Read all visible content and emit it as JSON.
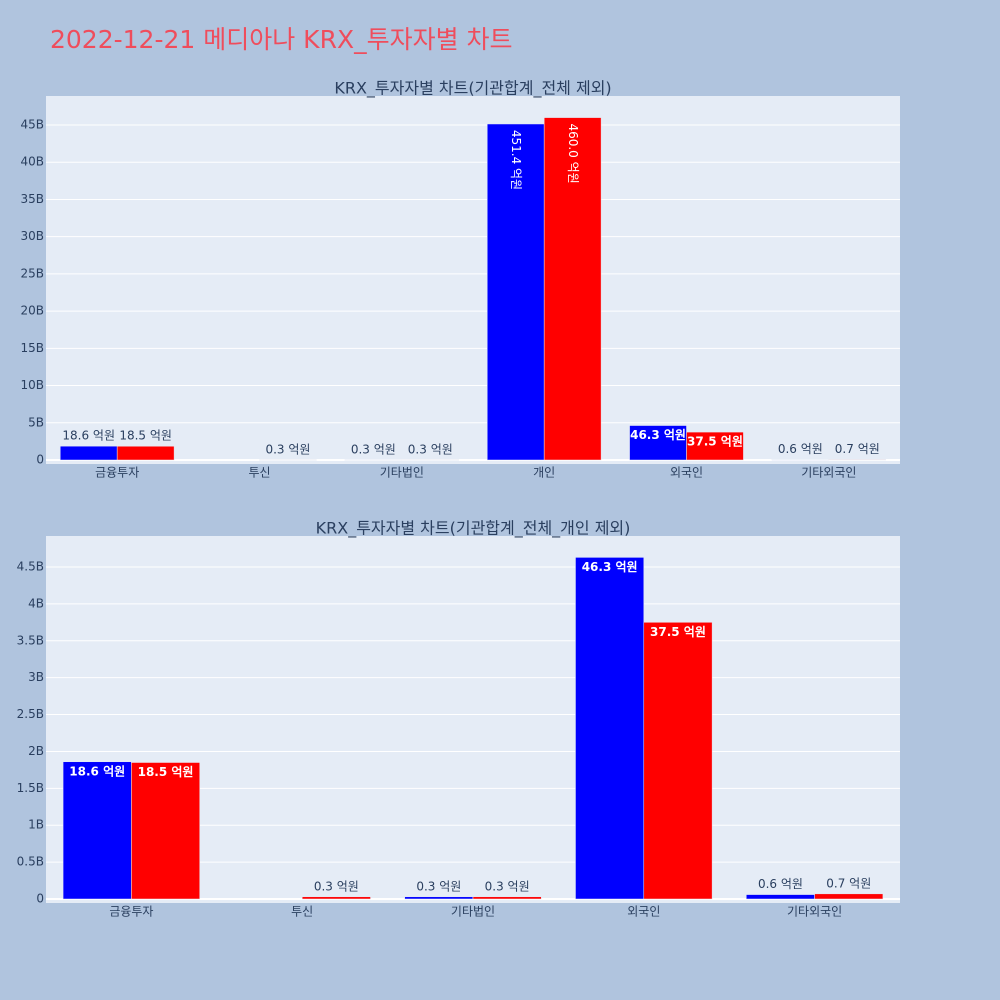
{
  "title": "2022-12-21 메디아나 KRX_투자자별 차트",
  "chart_data": [
    {
      "type": "bar",
      "title": "KRX_투자자별 차트(기관합계_전체 제외)",
      "categories": [
        "금융투자",
        "투신",
        "기타법인",
        "개인",
        "외국인",
        "기타외국인"
      ],
      "series": [
        {
          "color": "#0000ff",
          "values": [
            1.86,
            null,
            0.03,
            45.14,
            4.63,
            0.06
          ],
          "value_labels": [
            "18.6 억원",
            null,
            "0.3 억원",
            "451.4 억원",
            "46.3 억원",
            "0.6 억원"
          ]
        },
        {
          "color": "#ff0000",
          "values": [
            1.85,
            0.03,
            0.03,
            46.0,
            3.75,
            0.07
          ],
          "value_labels": [
            "18.5 억원",
            "0.3 억원",
            "0.3 억원",
            "460.0 억원",
            "37.5 억원",
            "0.7 억원"
          ]
        }
      ],
      "ylim": [
        0,
        48.9
      ],
      "yticks": [
        0,
        {
          "value": 5,
          "label": "5B"
        },
        {
          "value": 10,
          "label": "10B"
        },
        {
          "value": 15,
          "label": "15B"
        },
        {
          "value": 20,
          "label": "20B"
        },
        {
          "value": 25,
          "label": "25B"
        },
        {
          "value": 30,
          "label": "30B"
        },
        {
          "value": 35,
          "label": "35B"
        },
        {
          "value": 40,
          "label": "40B"
        },
        {
          "value": 45,
          "label": "45B"
        }
      ],
      "grid": true
    },
    {
      "type": "bar",
      "title": "KRX_투자자별 차트(기관합계_전체_개인 제외)",
      "categories": [
        "금융투자",
        "투신",
        "기타법인",
        "외국인",
        "기타외국인"
      ],
      "series": [
        {
          "color": "#0000ff",
          "values": [
            1.86,
            null,
            0.03,
            4.63,
            0.06
          ],
          "value_labels": [
            "18.6 억원",
            null,
            "0.3 억원",
            "46.3 억원",
            "0.6 억원"
          ]
        },
        {
          "color": "#ff0000",
          "values": [
            1.85,
            0.03,
            0.03,
            3.75,
            0.07
          ],
          "value_labels": [
            "18.5 억원",
            "0.3 억원",
            "0.3 억원",
            "37.5 억원",
            "0.7 억원"
          ]
        }
      ],
      "ylim": [
        0,
        4.92
      ],
      "yticks": [
        0,
        {
          "value": 0.5,
          "label": "0.5B"
        },
        {
          "value": 1,
          "label": "1B"
        },
        {
          "value": 1.5,
          "label": "1.5B"
        },
        {
          "value": 2,
          "label": "2B"
        },
        {
          "value": 2.5,
          "label": "2.5B"
        },
        {
          "value": 3,
          "label": "3B"
        },
        {
          "value": 3.5,
          "label": "3.5B"
        },
        {
          "value": 4,
          "label": "4B"
        },
        {
          "value": 4.5,
          "label": "4.5B"
        }
      ],
      "grid": true
    }
  ]
}
